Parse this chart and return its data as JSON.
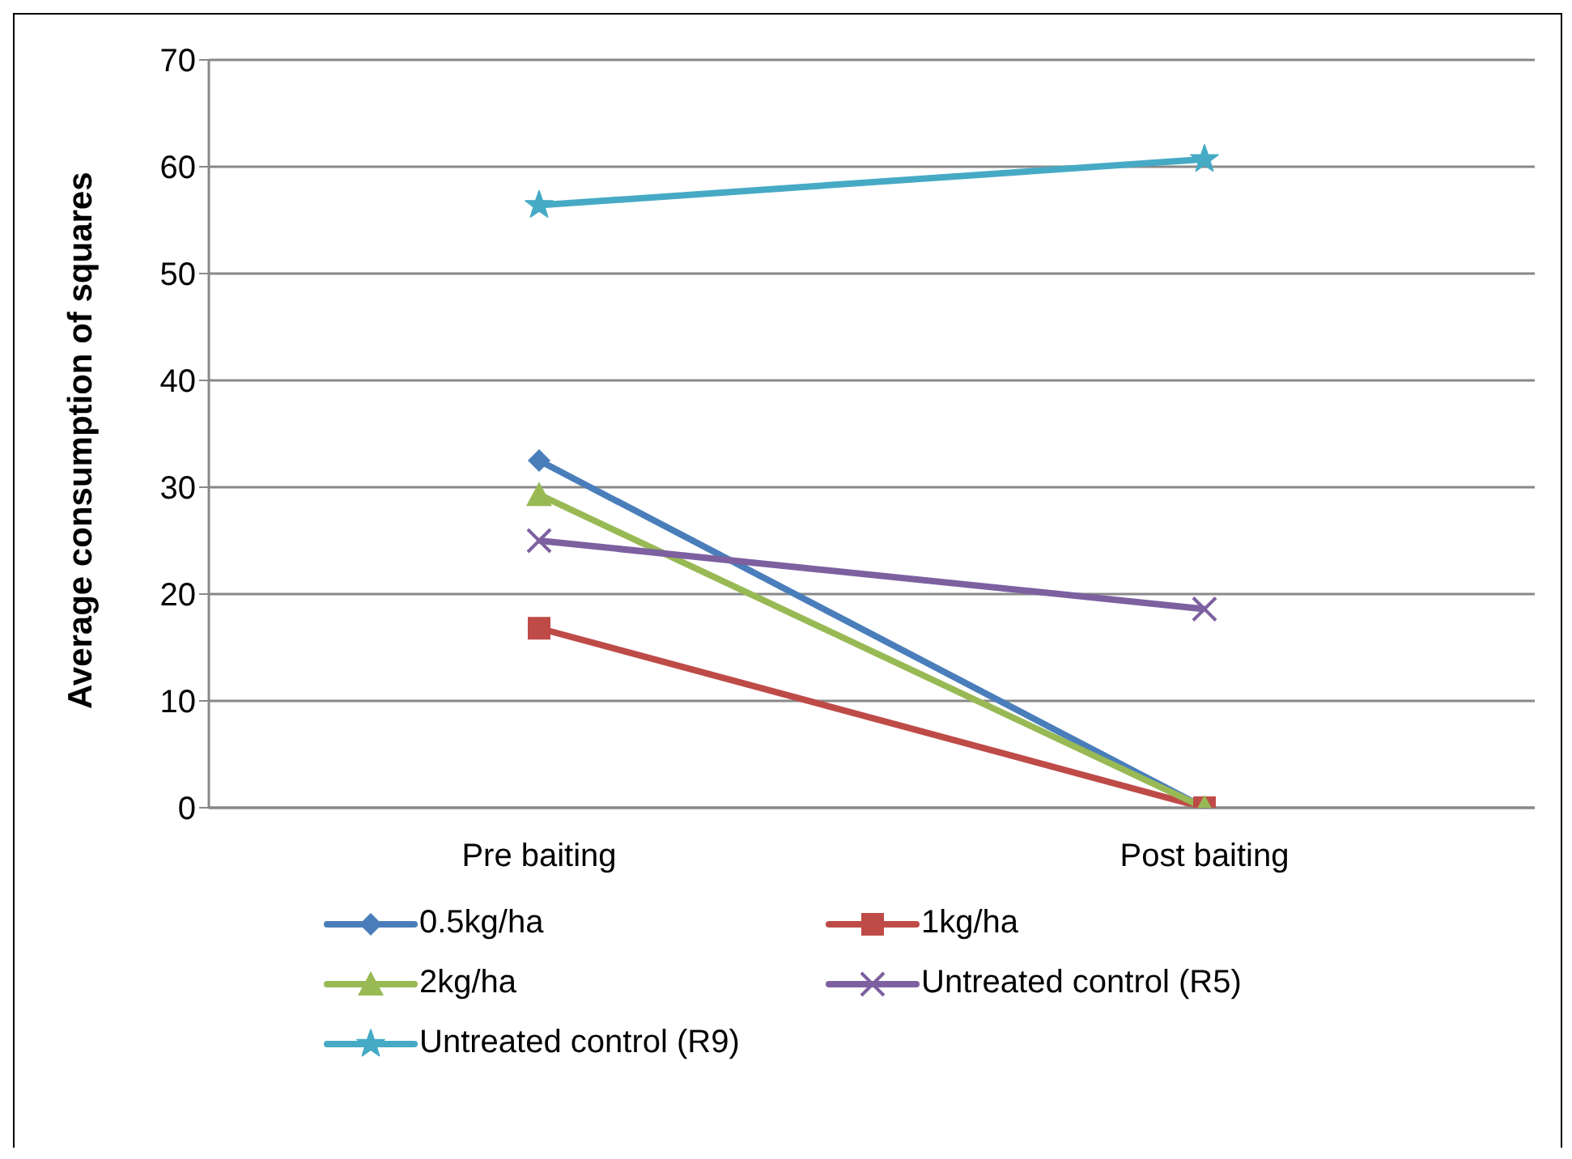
{
  "chart_data": {
    "type": "line",
    "ylabel": "Average consumption of squares",
    "categories": [
      "Pre  baiting",
      "Post baiting"
    ],
    "series": [
      {
        "name": "0.5kg/ha",
        "color": "#4a7ebb",
        "marker": "diamond",
        "values": [
          32.5,
          0
        ]
      },
      {
        "name": "1kg/ha",
        "color": "#be4b48",
        "marker": "square",
        "values": [
          16.8,
          0
        ]
      },
      {
        "name": "2kg/ha",
        "color": "#98b954",
        "marker": "triangle",
        "values": [
          29.3,
          0
        ]
      },
      {
        "name": "Untreated control (R5)",
        "color": "#7d60a0",
        "marker": "cross",
        "values": [
          25,
          18.6
        ]
      },
      {
        "name": "Untreated control (R9)",
        "color": "#46aac5",
        "marker": "star",
        "values": [
          56.4,
          60.7
        ]
      }
    ],
    "ylim": [
      0,
      70
    ],
    "yticks": [
      0,
      10,
      20,
      30,
      40,
      50,
      60,
      70
    ],
    "grid": "y",
    "legend": "bottom",
    "line_style": "solid"
  }
}
